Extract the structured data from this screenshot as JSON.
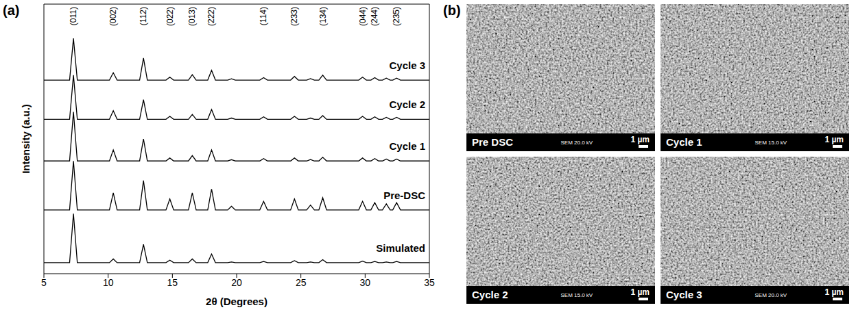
{
  "chart_data": {
    "type": "line",
    "panel": "(a)",
    "x_label": "2θ (Degrees)",
    "y_label": "Intensity (a.u.)",
    "xlim": [
      5,
      35
    ],
    "xticks": [
      5,
      10,
      15,
      20,
      25,
      30,
      35
    ],
    "ylim": [
      0,
      11
    ],
    "tick_labels": "x",
    "grid": false,
    "x": [
      5,
      7.0,
      7.3,
      7.6,
      10.1,
      10.4,
      10.7,
      12.45,
      12.75,
      13.05,
      14.5,
      14.8,
      15.1,
      16.25,
      16.55,
      16.85,
      17.75,
      18.05,
      18.35,
      19.3,
      19.6,
      19.9,
      21.8,
      22.1,
      22.4,
      24.2,
      24.5,
      24.8,
      25.45,
      25.75,
      26.05,
      26.4,
      26.7,
      27.0,
      29.5,
      29.8,
      30.1,
      30.45,
      30.75,
      31.05,
      31.35,
      31.65,
      31.95,
      32.15,
      32.45,
      32.75,
      35
    ],
    "series": [
      {
        "name": "Cycle 3",
        "color": "#000000",
        "values": [
          7.9,
          7.9,
          9.6,
          7.9,
          7.9,
          8.2,
          7.9,
          7.9,
          8.8,
          7.9,
          7.9,
          8.02,
          7.9,
          7.9,
          8.12,
          7.9,
          7.9,
          8.3,
          7.9,
          7.9,
          7.95,
          7.9,
          7.9,
          8.0,
          7.9,
          7.9,
          8.05,
          7.9,
          7.9,
          7.96,
          7.9,
          7.9,
          8.1,
          7.9,
          7.9,
          8.02,
          7.9,
          7.9,
          8.0,
          7.9,
          7.9,
          7.98,
          7.9,
          7.9,
          7.98,
          7.9,
          7.9
        ]
      },
      {
        "name": "Cycle 2",
        "color": "#000000",
        "values": [
          6.3,
          6.3,
          8.1,
          6.3,
          6.3,
          6.65,
          6.3,
          6.3,
          7.1,
          6.3,
          6.3,
          6.42,
          6.3,
          6.3,
          6.5,
          6.3,
          6.3,
          6.7,
          6.3,
          6.3,
          6.35,
          6.3,
          6.3,
          6.4,
          6.3,
          6.3,
          6.42,
          6.3,
          6.3,
          6.35,
          6.3,
          6.3,
          6.45,
          6.3,
          6.3,
          6.42,
          6.3,
          6.3,
          6.4,
          6.3,
          6.3,
          6.38,
          6.3,
          6.3,
          6.38,
          6.3,
          6.3
        ]
      },
      {
        "name": "Cycle 1",
        "color": "#000000",
        "values": [
          4.6,
          4.6,
          6.6,
          4.6,
          4.6,
          5.05,
          4.6,
          4.6,
          5.5,
          4.6,
          4.6,
          4.72,
          4.6,
          4.6,
          4.82,
          4.6,
          4.6,
          5.05,
          4.6,
          4.6,
          4.65,
          4.6,
          4.6,
          4.7,
          4.6,
          4.6,
          4.72,
          4.6,
          4.6,
          4.66,
          4.6,
          4.6,
          4.75,
          4.6,
          4.6,
          4.72,
          4.6,
          4.6,
          4.7,
          4.6,
          4.6,
          4.68,
          4.6,
          4.6,
          4.68,
          4.6,
          4.6
        ]
      },
      {
        "name": "Pre-DSC",
        "color": "#000000",
        "values": [
          2.6,
          2.6,
          4.6,
          2.6,
          2.6,
          3.3,
          2.6,
          2.6,
          3.8,
          2.6,
          2.6,
          3.05,
          2.6,
          2.6,
          3.3,
          2.6,
          2.6,
          3.45,
          2.6,
          2.6,
          2.75,
          2.6,
          2.6,
          2.95,
          2.6,
          2.6,
          3.05,
          2.6,
          2.6,
          2.8,
          2.6,
          2.6,
          3.1,
          2.6,
          2.6,
          2.95,
          2.6,
          2.6,
          2.9,
          2.6,
          2.6,
          2.85,
          2.6,
          2.6,
          2.9,
          2.6,
          2.6
        ]
      },
      {
        "name": "Simulated",
        "color": "#000000",
        "values": [
          0.45,
          0.45,
          2.45,
          0.45,
          0.45,
          0.6,
          0.45,
          0.45,
          1.2,
          0.45,
          0.45,
          0.55,
          0.45,
          0.45,
          0.6,
          0.45,
          0.45,
          0.8,
          0.45,
          0.45,
          0.48,
          0.45,
          0.45,
          0.5,
          0.45,
          0.45,
          0.53,
          0.45,
          0.45,
          0.48,
          0.45,
          0.45,
          0.57,
          0.45,
          0.45,
          0.51,
          0.45,
          0.45,
          0.5,
          0.45,
          0.45,
          0.48,
          0.45,
          0.45,
          0.5,
          0.45,
          0.45
        ]
      }
    ],
    "annotations": [
      {
        "text": "(011)",
        "x": 7.3
      },
      {
        "text": "(002)",
        "x": 10.4
      },
      {
        "text": "(112)",
        "x": 12.75
      },
      {
        "text": "(022)",
        "x": 14.8
      },
      {
        "text": "(013)",
        "x": 16.55
      },
      {
        "text": "(222)",
        "x": 18.05
      },
      {
        "text": "(114)",
        "x": 22.1
      },
      {
        "text": "(233)",
        "x": 24.5
      },
      {
        "text": "(134)",
        "x": 26.7
      },
      {
        "text": "(044)",
        "x": 29.8
      },
      {
        "text": "(244)",
        "x": 30.75
      },
      {
        "text": "(235)",
        "x": 32.45
      }
    ]
  },
  "image_panel": {
    "panel": "(b)",
    "images": [
      {
        "label": "Pre DSC",
        "info": "SEM 20.0 kV",
        "scale_bar": "1 µm"
      },
      {
        "label": "Cycle 1",
        "info": "SEM 15.0 kV",
        "scale_bar": "1 µm"
      },
      {
        "label": "Cycle 2",
        "info": "SEM 15.0 kV",
        "scale_bar": "1 µm"
      },
      {
        "label": "Cycle 3",
        "info": "SEM 20.0 kV",
        "scale_bar": "1 µm"
      }
    ]
  }
}
